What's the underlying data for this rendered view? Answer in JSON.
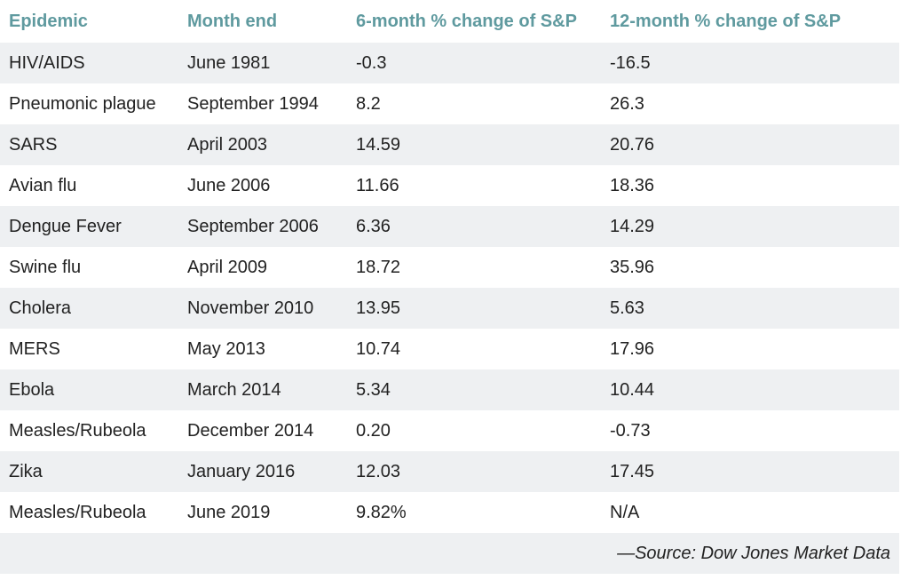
{
  "table": {
    "headers": [
      "Epidemic",
      "Month end",
      "6-month % change of S&P",
      "12-month % change of S&P"
    ],
    "rows": [
      [
        "HIV/AIDS",
        "June 1981",
        "-0.3",
        "-16.5"
      ],
      [
        "Pneumonic plague",
        "September 1994",
        "8.2",
        "26.3"
      ],
      [
        "SARS",
        "April 2003",
        "14.59",
        "20.76"
      ],
      [
        "Avian flu",
        "June 2006",
        "11.66",
        "18.36"
      ],
      [
        "Dengue Fever",
        "September 2006",
        "6.36",
        "14.29"
      ],
      [
        "Swine flu",
        "April 2009",
        "18.72",
        "35.96"
      ],
      [
        "Cholera",
        "November 2010",
        "13.95",
        "5.63"
      ],
      [
        "MERS",
        "May 2013",
        "10.74",
        "17.96"
      ],
      [
        "Ebola",
        "March 2014",
        "5.34",
        "10.44"
      ],
      [
        "Measles/Rubeola",
        "December 2014",
        "0.20",
        "-0.73"
      ],
      [
        "Zika",
        "January 2016",
        "12.03",
        "17.45"
      ],
      [
        "Measles/Rubeola",
        "June 2019",
        "9.82%",
        "N/A"
      ]
    ],
    "source": "—Source: Dow Jones Market Data"
  },
  "colors": {
    "header_text": "#5f9a9f",
    "stripe": "#eef0f2",
    "body_text": "#222222"
  }
}
